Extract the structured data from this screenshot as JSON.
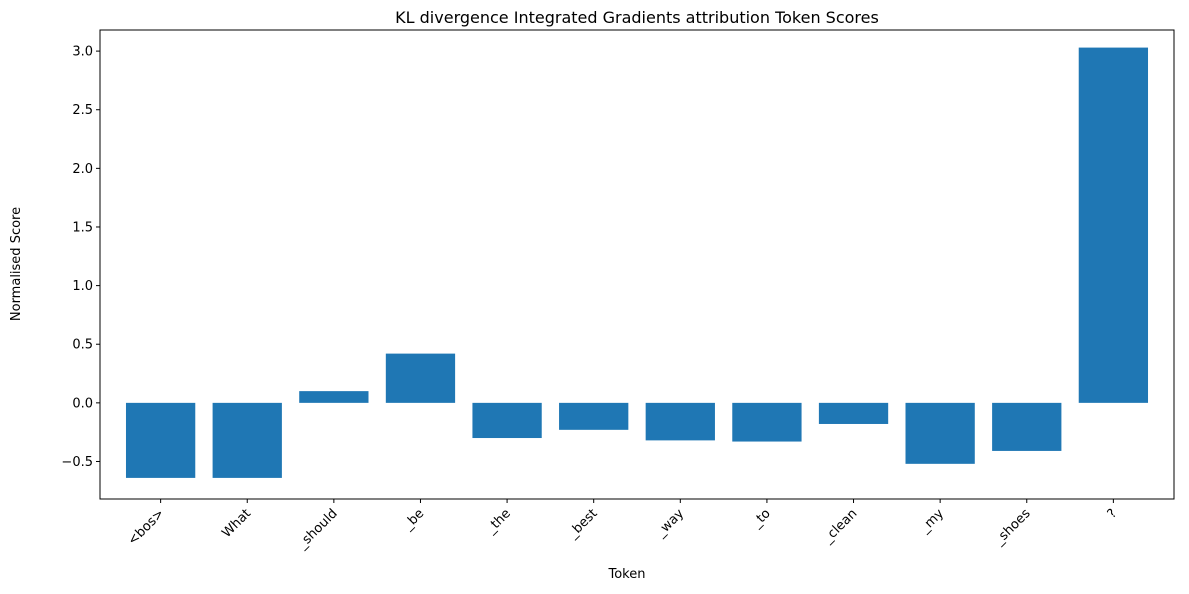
{
  "chart_data": {
    "type": "bar",
    "title": "KL divergence Integrated Gradients attribution Token Scores",
    "xlabel": "Token",
    "ylabel": "Normalised Score",
    "categories": [
      "<bos>",
      "What",
      "_should",
      "_be",
      "_the",
      "_best",
      "_way",
      "_to",
      "_clean",
      "_my",
      "_shoes",
      "?"
    ],
    "values": [
      -0.64,
      -0.64,
      0.1,
      0.42,
      -0.3,
      -0.23,
      -0.32,
      -0.33,
      -0.18,
      -0.52,
      -0.41,
      3.03
    ],
    "ylim": [
      -0.82,
      3.18
    ],
    "yticks": [
      -0.5,
      0.0,
      0.5,
      1.0,
      1.5,
      2.0,
      2.5,
      3.0
    ],
    "ytick_labels": [
      "−0.5",
      "0.0",
      "0.5",
      "1.0",
      "1.5",
      "2.0",
      "2.5",
      "3.0"
    ],
    "grid": false,
    "bar_color": "#1f77b4"
  }
}
